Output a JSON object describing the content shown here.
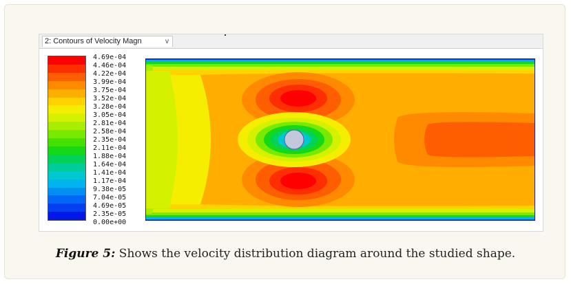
{
  "tab": {
    "label": "2: Contours of Velocity Magn",
    "chevron": "v"
  },
  "legend": {
    "labels": [
      "4.69e-04",
      "4.46e-04",
      "4.22e-04",
      "3.99e-04",
      "3.75e-04",
      "3.52e-04",
      "3.28e-04",
      "3.05e-04",
      "2.81e-04",
      "2.58e-04",
      "2.35e-04",
      "2.11e-04",
      "1.88e-04",
      "1.64e-04",
      "1.41e-04",
      "1.17e-04",
      "9.38e-05",
      "7.04e-05",
      "4.69e-05",
      "2.35e-05",
      "0.00e+00"
    ],
    "colors": [
      "#ff0000",
      "#ff2e00",
      "#ff5e00",
      "#ff8a00",
      "#ffae00",
      "#ffd200",
      "#f5ee00",
      "#d4f200",
      "#a8ee00",
      "#78ea00",
      "#44e000",
      "#14d818",
      "#00d25a",
      "#00cc9a",
      "#00c8d2",
      "#00b4f0",
      "#0090f4",
      "#0068f4",
      "#0040f0",
      "#0018e8"
    ]
  },
  "caption": {
    "label": "Figure 5:",
    "text": " Shows the velocity distribution diagram around the studied shape."
  }
}
